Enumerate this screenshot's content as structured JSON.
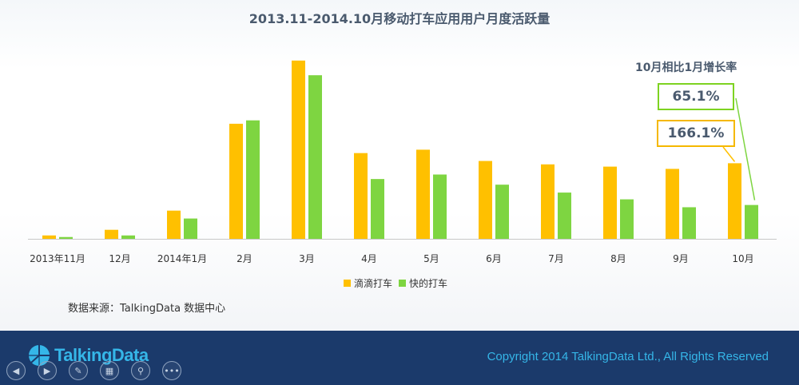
{
  "title": "2013.11-2014.10月移动打车应用用户月度活跃量",
  "source": "数据来源：TalkingData 数据中心",
  "growth": {
    "title": "10月相比1月增长率",
    "kuaidi_rate": "65.1%",
    "didi_rate": "166.1%"
  },
  "colors": {
    "didi": "#ffc000",
    "kuaidi": "#7ed541",
    "axis": "#c8c8c8",
    "text": "#4a5a6e"
  },
  "chart_data": {
    "type": "bar",
    "categories": [
      "2013年11月",
      "12月",
      "2014年1月",
      "2月",
      "3月",
      "4月",
      "5月",
      "6月",
      "7月",
      "8月",
      "9月",
      "10月"
    ],
    "series": [
      {
        "name": "滴滴打车",
        "values": [
          1.5,
          4,
          12.5,
          51,
          79,
          38,
          39.5,
          34.5,
          33,
          32,
          31,
          33.5
        ]
      },
      {
        "name": "快的打车",
        "values": [
          0.8,
          1.5,
          9,
          52.5,
          72.5,
          26.5,
          28.5,
          24,
          20.5,
          17.5,
          14,
          15
        ]
      }
    ],
    "ylim": [
      0,
      80
    ],
    "xlabel": "",
    "ylabel": "",
    "legend": "bottom-center",
    "grid": false
  },
  "footer": {
    "logo_text": "TalkingData",
    "copyright": "Copyright 2014 TalkingData Ltd., All Rights Reserved",
    "controls": [
      "prev-icon",
      "next-icon",
      "pen-icon",
      "slides-icon",
      "zoom-icon",
      "more-icon"
    ]
  }
}
